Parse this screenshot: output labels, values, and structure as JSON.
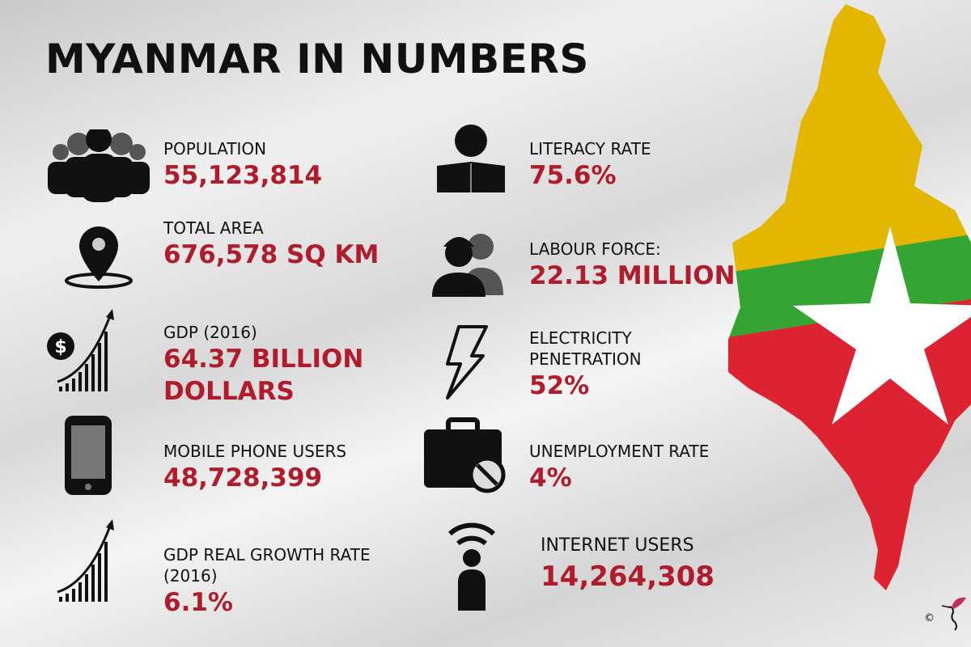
{
  "title": "MYANMAR IN NUMBERS",
  "colors": {
    "value_red": "#b01c2b",
    "flag_yellow": "#e3b700",
    "flag_green": "#34a532",
    "flag_red": "#dd2332"
  },
  "stats": [
    {
      "icon": "people-icon",
      "label": "POPULATION",
      "value": "55,123,814"
    },
    {
      "icon": "map-pin-icon",
      "label": "TOTAL AREA",
      "value": "676,578 SQ KM"
    },
    {
      "icon": "dollar-growth-icon",
      "label": "GDP (2016)",
      "value": "64.37 BILLION DOLLARS"
    },
    {
      "icon": "mobile-phone-icon",
      "label": "MOBILE PHONE USERS",
      "value": "48,728,399"
    },
    {
      "icon": "growth-chart-icon",
      "label": "GDP REAL GROWTH RATE (2016)",
      "value": "6.1%"
    },
    {
      "icon": "reader-icon",
      "label": "LITERACY RATE",
      "value": "75.6%"
    },
    {
      "icon": "workers-icon",
      "label": "LABOUR FORCE:",
      "value": "22.13 MILLION"
    },
    {
      "icon": "lightning-icon",
      "label": "ELECTRICITY PENETRATION",
      "value": "52%"
    },
    {
      "icon": "briefcase-ban-icon",
      "label": "UNEMPLOYMENT RATE",
      "value": "4%"
    },
    {
      "icon": "wifi-person-icon",
      "label": "INTERNET USERS",
      "value": "14,264,308"
    }
  ],
  "copyright": "©"
}
